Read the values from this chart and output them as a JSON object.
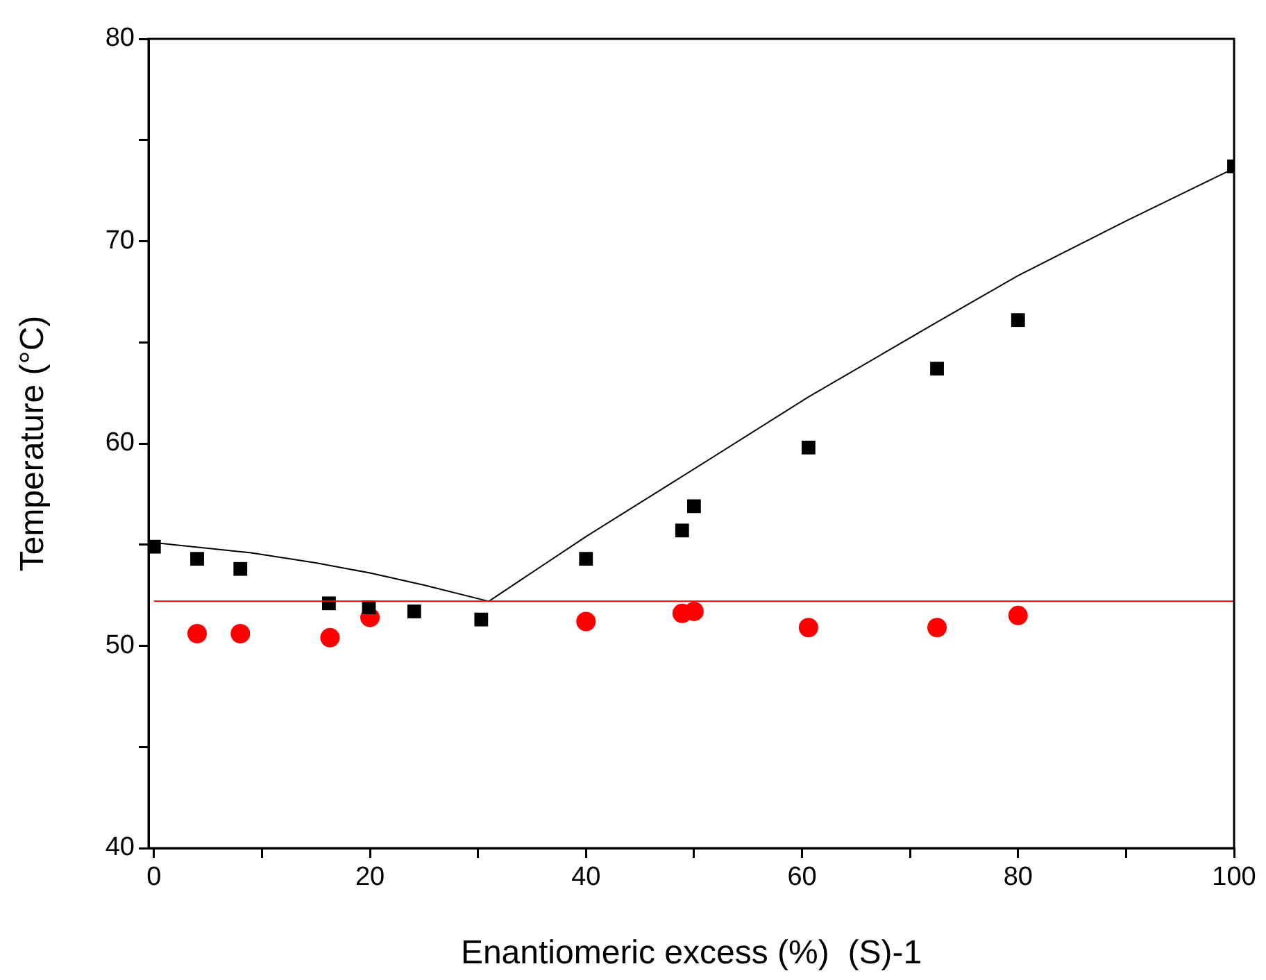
{
  "chart_data": {
    "type": "scatter",
    "xlabel": "Enantiomeric excess (%)  (S)-1",
    "ylabel": "Temperature (°C)",
    "xlim": [
      -0.5,
      100
    ],
    "ylim": [
      40,
      80
    ],
    "xticks": [
      0,
      {
        "value": 10,
        "label": null
      },
      20,
      {
        "value": 30,
        "label": null
      },
      40,
      {
        "value": 50,
        "label": null
      },
      60,
      {
        "value": 70,
        "label": null
      },
      80,
      {
        "value": 90,
        "label": null
      },
      100
    ],
    "yticks": [
      40,
      {
        "value": 45,
        "label": null
      },
      50,
      {
        "value": 55,
        "label": null
      },
      60,
      {
        "value": 65,
        "label": null
      },
      70,
      {
        "value": 75,
        "label": null
      },
      80
    ],
    "grid": false,
    "legend": false,
    "series": [
      {
        "type": "scatter",
        "marker": "square",
        "color": "#000000",
        "x": [
          0,
          4,
          8,
          16.2,
          19.9,
          24.1,
          30.3,
          40,
          48.9,
          50,
          60.6,
          72.5,
          80,
          100
        ],
        "values": [
          54.9,
          54.3,
          53.8,
          52.1,
          51.9,
          51.7,
          51.3,
          54.3,
          55.7,
          56.9,
          59.8,
          63.7,
          66.1,
          73.7
        ]
      },
      {
        "type": "scatter",
        "marker": "circle",
        "color": "#ff0000",
        "x": [
          4,
          8,
          16.3,
          20,
          40,
          48.9,
          50,
          60.6,
          72.5,
          80
        ],
        "values": [
          50.6,
          50.6,
          50.4,
          51.4,
          51.2,
          51.6,
          51.7,
          50.9,
          50.9,
          51.5
        ]
      },
      {
        "type": "line",
        "marker": "none",
        "color": "#000000",
        "x": [
          0,
          9,
          15,
          20,
          25,
          31,
          40,
          47.5,
          60.6,
          72.5,
          80,
          90,
          100
        ],
        "values": [
          55.1,
          54.6,
          54.1,
          53.6,
          53.0,
          52.2,
          55.4,
          57.9,
          62.3,
          66.0,
          68.3,
          71.0,
          73.6
        ]
      }
    ],
    "ref_lines": [
      {
        "axis": "y",
        "value": 52.2,
        "color": "#ff0000"
      }
    ]
  }
}
